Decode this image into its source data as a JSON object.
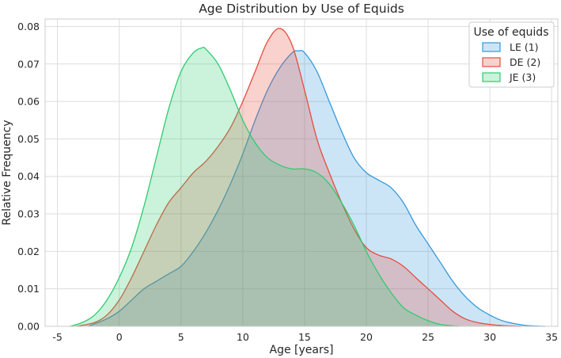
{
  "chart_data": {
    "type": "area",
    "title": "Age Distribution by Use of Equids",
    "xlabel": "Age [years]",
    "ylabel": "Relative Frequency",
    "xlim": [
      -6,
      35.5
    ],
    "ylim": [
      0,
      0.082
    ],
    "xticks": [
      -5,
      0,
      5,
      10,
      15,
      20,
      25,
      30,
      35
    ],
    "yticks": [
      0.0,
      0.01,
      0.02,
      0.03,
      0.04,
      0.05,
      0.06,
      0.07,
      0.08
    ],
    "grid": true,
    "legend": {
      "title": "Use of equids",
      "placement": "top-right"
    },
    "series": [
      {
        "name": "LE (1)",
        "color": "#3498db",
        "x": [
          -2.5,
          -1,
          0,
          1,
          2,
          3,
          4,
          5,
          6,
          7,
          8,
          9,
          10,
          11,
          12,
          13,
          14,
          14.5,
          15,
          16,
          17,
          18,
          19,
          20,
          21,
          22,
          23,
          24,
          25,
          26,
          27,
          28,
          29,
          30,
          31,
          32,
          33,
          34.5
        ],
        "y": [
          0.0,
          0.002,
          0.004,
          0.007,
          0.01,
          0.012,
          0.014,
          0.016,
          0.02,
          0.025,
          0.031,
          0.038,
          0.046,
          0.055,
          0.063,
          0.069,
          0.073,
          0.0735,
          0.073,
          0.068,
          0.06,
          0.052,
          0.045,
          0.041,
          0.039,
          0.037,
          0.033,
          0.027,
          0.022,
          0.017,
          0.012,
          0.008,
          0.005,
          0.003,
          0.0015,
          0.0007,
          0.0002,
          0.0
        ]
      },
      {
        "name": "DE (2)",
        "color": "#e74c3c",
        "x": [
          -3.5,
          -2,
          -1,
          0,
          1,
          2,
          3,
          4,
          5,
          6,
          7,
          8,
          9,
          10,
          11,
          12,
          13,
          14,
          15,
          16,
          17,
          18,
          19,
          20,
          21,
          22,
          23,
          24,
          25,
          26,
          27,
          28,
          29,
          30,
          31,
          32.5
        ],
        "y": [
          0.0,
          0.001,
          0.003,
          0.007,
          0.013,
          0.02,
          0.027,
          0.033,
          0.037,
          0.041,
          0.044,
          0.048,
          0.053,
          0.06,
          0.068,
          0.076,
          0.0795,
          0.075,
          0.063,
          0.05,
          0.041,
          0.033,
          0.026,
          0.021,
          0.019,
          0.018,
          0.016,
          0.013,
          0.01,
          0.007,
          0.004,
          0.002,
          0.001,
          0.0005,
          0.0002,
          0.0
        ]
      },
      {
        "name": "JE (3)",
        "color": "#2ecc71",
        "x": [
          -4,
          -3,
          -2,
          -1,
          0,
          1,
          2,
          3,
          4,
          5,
          6,
          6.7,
          7,
          8,
          9,
          10,
          11,
          12,
          13,
          14,
          15,
          16,
          17,
          18,
          19,
          20,
          21,
          22,
          23,
          24,
          25,
          26,
          27.5
        ],
        "y": [
          0.0,
          0.001,
          0.003,
          0.007,
          0.013,
          0.021,
          0.032,
          0.045,
          0.058,
          0.068,
          0.073,
          0.0743,
          0.074,
          0.07,
          0.063,
          0.055,
          0.049,
          0.045,
          0.043,
          0.042,
          0.042,
          0.041,
          0.038,
          0.033,
          0.027,
          0.02,
          0.014,
          0.009,
          0.005,
          0.003,
          0.0015,
          0.0005,
          0.0
        ]
      }
    ]
  }
}
